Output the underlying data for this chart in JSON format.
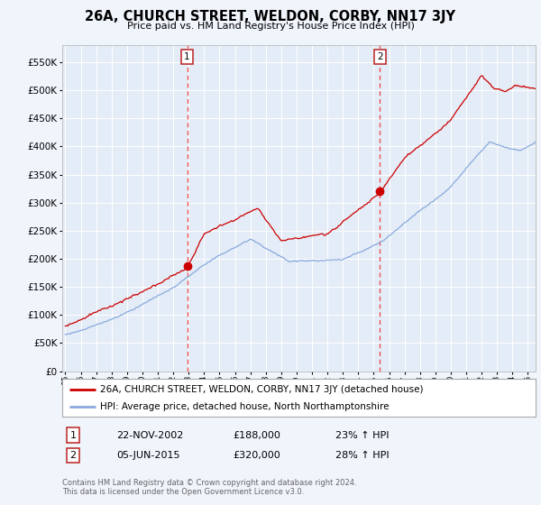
{
  "title": "26A, CHURCH STREET, WELDON, CORBY, NN17 3JY",
  "subtitle": "Price paid vs. HM Land Registry's House Price Index (HPI)",
  "background_color": "#f0f4fb",
  "plot_bg_color": "#e4ecf7",
  "legend_label_red": "26A, CHURCH STREET, WELDON, CORBY, NN17 3JY (detached house)",
  "legend_label_blue": "HPI: Average price, detached house, North Northamptonshire",
  "footnote": "Contains HM Land Registry data © Crown copyright and database right 2024.\nThis data is licensed under the Open Government Licence v3.0.",
  "transaction1_date": "22-NOV-2002",
  "transaction1_price": "£188,000",
  "transaction1_hpi": "23% ↑ HPI",
  "transaction2_date": "05-JUN-2015",
  "transaction2_price": "£320,000",
  "transaction2_hpi": "28% ↑ HPI",
  "marker1_x": 2002.9,
  "marker1_y": 188000,
  "marker2_x": 2015.4,
  "marker2_y": 320000,
  "red_color": "#cc0000",
  "blue_color": "#88aadd",
  "dashed_color": "#ee4444",
  "ylim": [
    0,
    580000
  ],
  "xlim": [
    1994.8,
    2025.5
  ],
  "yticks": [
    0,
    50000,
    100000,
    150000,
    200000,
    250000,
    300000,
    350000,
    400000,
    450000,
    500000,
    550000
  ]
}
